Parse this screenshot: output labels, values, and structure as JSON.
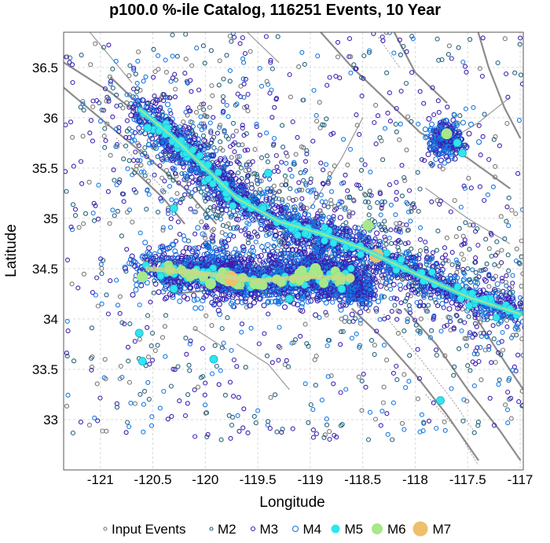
{
  "chart_data": {
    "type": "scatter",
    "title": "p100.0 %-ile Catalog, 116251 Events, 10 Year",
    "xlabel": "Longitude",
    "ylabel": "Latitude",
    "xlim": [
      -121.35,
      -116.97
    ],
    "ylim": [
      32.5,
      36.85
    ],
    "x_ticks": [
      -121,
      -120.5,
      -120,
      -119.5,
      -119,
      -118.5,
      -118,
      -117.5,
      -117
    ],
    "x_tick_labels": [
      "-121",
      "-120.5",
      "-120",
      "-119.5",
      "-119",
      "-118.5",
      "-118",
      "-117.5",
      "-117"
    ],
    "y_ticks": [
      33,
      33.5,
      34,
      34.5,
      35,
      35.5,
      36,
      36.5
    ],
    "y_tick_labels": [
      "33",
      "33.5",
      "34",
      "34.5",
      "35",
      "35.5",
      "36",
      "36.5"
    ],
    "grid": true,
    "legend_position": "bottom",
    "series": [
      {
        "name": "Input Events",
        "color": "#777777",
        "fill": "none"
      },
      {
        "name": "M2",
        "color": "#1f5f7a",
        "fill": "none"
      },
      {
        "name": "M3",
        "color": "#3a1fb0",
        "fill": "none"
      },
      {
        "name": "M4",
        "color": "#1577e0",
        "fill": "none"
      },
      {
        "name": "M5",
        "color": "#2ee6f0",
        "fill": "#2ee6f0"
      },
      {
        "name": "M6",
        "color": "#a6e88a",
        "fill": "#a6e88a"
      },
      {
        "name": "M7",
        "color": "#eebf6c",
        "fill": "#eebf6c"
      }
    ],
    "main_trend": [
      {
        "x": -120.62,
        "y": 36.08
      },
      {
        "x": -120.3,
        "y": 35.8
      },
      {
        "x": -120.0,
        "y": 35.5
      },
      {
        "x": -119.7,
        "y": 35.2
      },
      {
        "x": -119.3,
        "y": 34.97
      },
      {
        "x": -118.9,
        "y": 34.85
      },
      {
        "x": -118.5,
        "y": 34.7
      },
      {
        "x": -118.0,
        "y": 34.45
      },
      {
        "x": -117.5,
        "y": 34.22
      },
      {
        "x": -117.0,
        "y": 34.05
      }
    ],
    "transverse_band": [
      {
        "x": -120.55,
        "y": 34.5
      },
      {
        "x": -120.0,
        "y": 34.45
      },
      {
        "x": -119.5,
        "y": 34.38
      },
      {
        "x": -119.0,
        "y": 34.42
      },
      {
        "x": -118.6,
        "y": 34.4
      }
    ],
    "clusters": [
      {
        "x": -117.7,
        "y": 35.78,
        "radius": 0.18
      },
      {
        "x": -119.85,
        "y": 34.48,
        "radius": 0.3
      },
      {
        "x": -119.0,
        "y": 34.48,
        "radius": 0.3
      },
      {
        "x": -118.55,
        "y": 34.3,
        "radius": 0.18
      }
    ],
    "large_events": [
      {
        "x": -118.37,
        "y": 34.63,
        "mag": 7
      },
      {
        "x": -119.75,
        "y": 34.4,
        "mag": 7
      },
      {
        "x": -120.1,
        "y": 34.45,
        "mag": 6
      },
      {
        "x": -119.1,
        "y": 34.45,
        "mag": 6
      },
      {
        "x": -118.95,
        "y": 34.5,
        "mag": 6
      },
      {
        "x": -118.45,
        "y": 34.93,
        "mag": 6
      },
      {
        "x": -120.6,
        "y": 34.42,
        "mag": 6
      },
      {
        "x": -119.5,
        "y": 34.35,
        "mag": 6
      },
      {
        "x": -117.7,
        "y": 35.84,
        "mag": 6
      },
      {
        "x": -119.95,
        "y": 34.35,
        "mag": 6
      },
      {
        "x": -120.63,
        "y": 33.86,
        "mag": 5
      },
      {
        "x": -120.6,
        "y": 33.58,
        "mag": 5
      },
      {
        "x": -119.92,
        "y": 33.6,
        "mag": 5
      },
      {
        "x": -117.76,
        "y": 33.19,
        "mag": 5
      },
      {
        "x": -120.2,
        "y": 35.7,
        "mag": 5
      },
      {
        "x": -119.4,
        "y": 35.45,
        "mag": 5
      },
      {
        "x": -120.55,
        "y": 35.9,
        "mag": 5
      },
      {
        "x": -119.8,
        "y": 35.25,
        "mag": 5
      },
      {
        "x": -120.3,
        "y": 35.1,
        "mag": 5
      },
      {
        "x": -118.2,
        "y": 34.55,
        "mag": 5
      },
      {
        "x": -117.55,
        "y": 35.65,
        "mag": 5
      },
      {
        "x": -117.1,
        "y": 34.1,
        "mag": 5
      },
      {
        "x": -119.2,
        "y": 34.2,
        "mag": 5
      },
      {
        "x": -118.7,
        "y": 34.3,
        "mag": 5
      },
      {
        "x": -120.3,
        "y": 34.3,
        "mag": 5
      },
      {
        "x": -118.1,
        "y": 34.5,
        "mag": 5
      },
      {
        "x": -117.6,
        "y": 35.75,
        "mag": 5
      }
    ]
  }
}
